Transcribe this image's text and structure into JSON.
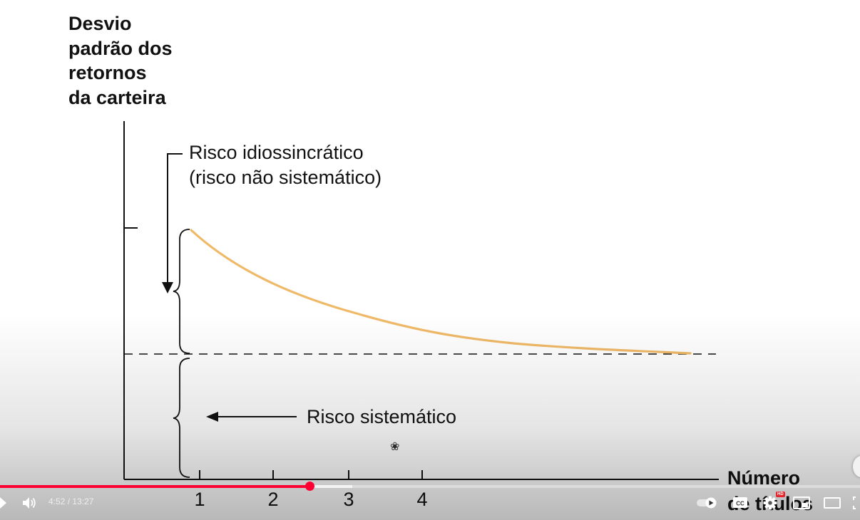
{
  "figure": {
    "y_axis_label_lines": [
      "Desvio",
      "padrão dos",
      "retornos",
      "da carteira"
    ],
    "annotation_idiosyncratic_line1": "Risco idiossincrático",
    "annotation_idiosyncratic_line2": "(risco não sistemático)",
    "annotation_systematic": "Risco sistemático",
    "x_axis_label_line1": "Número",
    "x_axis_label_line2": "de títulos",
    "x_ticks": [
      "1",
      "2",
      "3",
      "4"
    ],
    "curve_color": "#f0b967",
    "ink_color": "#111111"
  },
  "player": {
    "current_time": "4:52",
    "separator": " / ",
    "duration": "13:27",
    "progress_fraction": 0.36,
    "buffered_fraction": 0.41,
    "progress_color": "#ff0033",
    "hd_badge": "HD",
    "icons": [
      "play-icon",
      "volume-icon",
      "autoplay-toggle-icon",
      "captions-icon",
      "settings-icon",
      "miniplayer-icon",
      "theater-icon",
      "fullscreen-icon"
    ]
  }
}
